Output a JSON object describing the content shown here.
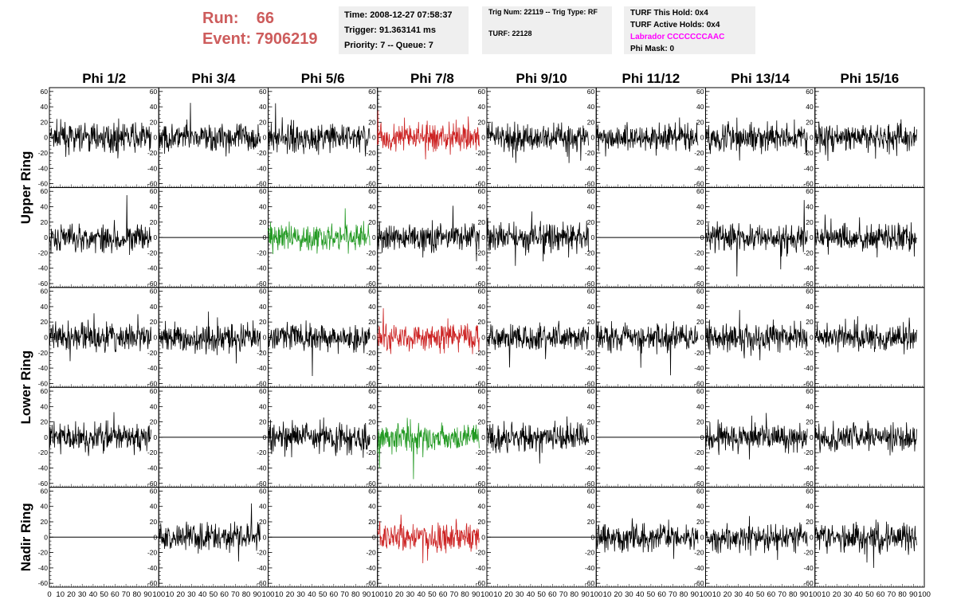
{
  "header": {
    "run_label": "Run:",
    "run_value": "66",
    "event_label": "Event:",
    "event_value": "7906219",
    "time": "Time: 2008-12-27 07:58:37",
    "trigger": "Trigger: 91.363141 ms",
    "priority": "Priority: 7 -- Queue: 7",
    "trig_num": "Trig Num: 22119 -- Trig Type: RF",
    "turf": "TURF: 22128",
    "turf_this_hold": "TURF This Hold: 0x4",
    "turf_active_holds": "TURF Active Holds: 0x4",
    "labrador": "Labrador CCCCCCCAAC",
    "phi_mask": "Phi Mask: 0",
    "labrador_color": "#ff00ff"
  },
  "chart_data": {
    "type": "line",
    "columns": [
      "Phi 1/2",
      "Phi 3/4",
      "Phi 5/6",
      "Phi 7/8",
      "Phi 9/10",
      "Phi 11/12",
      "Phi 13/14",
      "Phi 15/16"
    ],
    "ring_labels": [
      "Upper Ring",
      "Lower Ring",
      "Nadir Ring"
    ],
    "y_ticks": [
      "60",
      "40",
      "20",
      "0",
      "-20",
      "-40",
      "-60"
    ],
    "x_tick_labels": [
      "0",
      "10",
      "20",
      "30",
      "40",
      "50",
      "60",
      "70",
      "80",
      "90",
      "100"
    ],
    "xlim": [
      0,
      100
    ],
    "ylim": [
      -65,
      65
    ],
    "colors": {
      "normal": "#000000",
      "red": "#cc2222",
      "green": "#229922"
    },
    "rows": [
      {
        "kind": [
          "noise",
          "noise",
          "noise",
          "red",
          "noise",
          "noise",
          "noise",
          "noise"
        ]
      },
      {
        "kind": [
          "noise",
          "flat",
          "green",
          "noise",
          "noise",
          "flat",
          "noise",
          "noise"
        ]
      },
      {
        "kind": [
          "noise",
          "noise",
          "noise",
          "red",
          "noise",
          "noise",
          "noise",
          "noise"
        ]
      },
      {
        "kind": [
          "noise",
          "flat",
          "noise",
          "green",
          "noise",
          "flat",
          "noise",
          "noise"
        ]
      },
      {
        "kind": [
          "flat",
          "noise",
          "flat",
          "red",
          "flat",
          "noise",
          "noise",
          "noise"
        ]
      }
    ]
  }
}
